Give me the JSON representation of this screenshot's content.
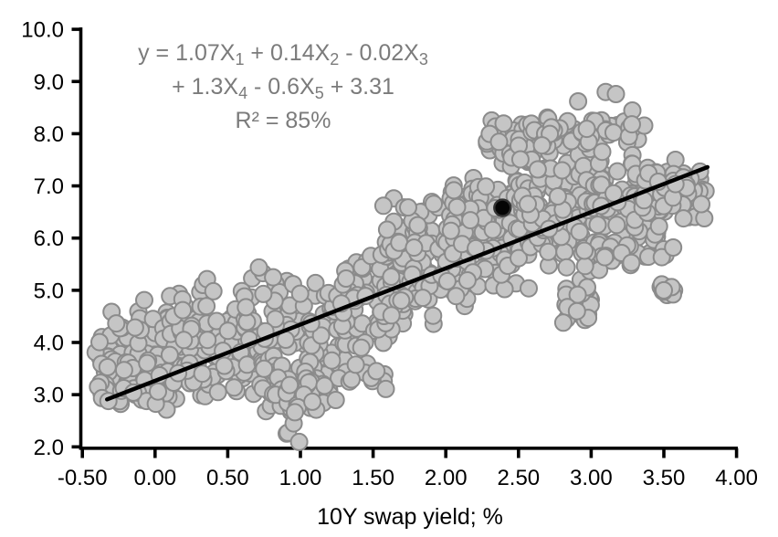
{
  "chart_data": {
    "type": "scatter",
    "title": "",
    "xlabel": "10Y swap yield; %",
    "ylabel": "",
    "xlim": [
      -0.5,
      4.0
    ],
    "ylim": [
      2.0,
      10.0
    ],
    "grid": false,
    "legend": false,
    "axis_color": "#000000",
    "x_ticks": [
      {
        "value": -0.5,
        "label": "-0.50"
      },
      {
        "value": 0.0,
        "label": "0.00"
      },
      {
        "value": 0.5,
        "label": "0.50"
      },
      {
        "value": 1.0,
        "label": "1.00"
      },
      {
        "value": 1.5,
        "label": "1.50"
      },
      {
        "value": 2.0,
        "label": "2.00"
      },
      {
        "value": 2.5,
        "label": "2.50"
      },
      {
        "value": 3.0,
        "label": "3.00"
      },
      {
        "value": 3.5,
        "label": "3.50"
      },
      {
        "value": 4.0,
        "label": "4.00"
      }
    ],
    "y_ticks": [
      {
        "value": 2.0,
        "label": "2.0"
      },
      {
        "value": 3.0,
        "label": "3.0"
      },
      {
        "value": 4.0,
        "label": "4.0"
      },
      {
        "value": 5.0,
        "label": "5.0"
      },
      {
        "value": 6.0,
        "label": "6.0"
      },
      {
        "value": 7.0,
        "label": "7.0"
      },
      {
        "value": 8.0,
        "label": "8.0"
      },
      {
        "value": 9.0,
        "label": "9.0"
      },
      {
        "value": 10.0,
        "label": "10.0"
      }
    ],
    "annotation": {
      "color": "#7b7b7b",
      "r_squared": "85%",
      "lines": [
        [
          {
            "t": "y = 1.07X"
          },
          {
            "sub": "1"
          },
          {
            "t": " + 0.14X"
          },
          {
            "sub": "2"
          },
          {
            "t": " - 0.02X"
          },
          {
            "sub": "3"
          }
        ],
        [
          {
            "t": "+ 1.3X"
          },
          {
            "sub": "4"
          },
          {
            "t": " - 0.6X"
          },
          {
            "sub": "5"
          },
          {
            "t": " + 3.31"
          }
        ],
        [
          {
            "t": "R² = 85%"
          }
        ]
      ]
    },
    "regression_line": {
      "x_start": -0.33,
      "y_start": 2.91,
      "x_end": 3.8,
      "y_end": 7.36,
      "color": "#000000",
      "width": 4.5
    },
    "highlight_point": {
      "x": 2.39,
      "y": 6.58,
      "fill": "#050505",
      "stroke": "#333333",
      "radius": 9
    },
    "outlier_points": [
      [
        2.91,
        8.62
      ],
      [
        3.1,
        8.8
      ],
      [
        3.17,
        8.76
      ]
    ],
    "point_style": {
      "radius": 9,
      "fill": "#c5c5c5",
      "stroke": "#8b8b8b",
      "stroke_width": 2
    },
    "scatter_cloud": {
      "seed": 9,
      "n_points_estimate": 1330,
      "clusters": [
        {
          "n": 110,
          "x": [
            -0.42,
            0.15
          ],
          "y": [
            2.7,
            4.85
          ]
        },
        {
          "n": 55,
          "x": [
            -0.4,
            0.12
          ],
          "y": [
            2.55,
            3.75
          ]
        },
        {
          "n": 130,
          "x": [
            0.1,
            0.7
          ],
          "y": [
            2.85,
            5.3
          ]
        },
        {
          "n": 120,
          "x": [
            0.6,
            1.32
          ],
          "y": [
            2.9,
            5.55
          ]
        },
        {
          "n": 45,
          "x": [
            0.72,
            1.28
          ],
          "y": [
            2.55,
            3.6
          ]
        },
        {
          "n": 70,
          "x": [
            1.28,
            1.72
          ],
          "y": [
            3.55,
            6.45
          ]
        },
        {
          "n": 12,
          "x": [
            1.3,
            1.6
          ],
          "y": [
            3.05,
            3.8
          ]
        },
        {
          "n": 125,
          "x": [
            1.55,
            2.15
          ],
          "y": [
            4.3,
            7.15
          ]
        },
        {
          "n": 150,
          "x": [
            2.0,
            2.58
          ],
          "y": [
            4.8,
            7.45
          ]
        },
        {
          "n": 38,
          "x": [
            2.28,
            2.6
          ],
          "y": [
            7.2,
            8.35
          ]
        },
        {
          "n": 150,
          "x": [
            2.5,
            3.1
          ],
          "y": [
            5.3,
            8.05
          ]
        },
        {
          "n": 55,
          "x": [
            2.58,
            3.38
          ],
          "y": [
            7.55,
            8.45
          ]
        },
        {
          "n": 22,
          "x": [
            2.8,
            3.0
          ],
          "y": [
            4.2,
            5.3
          ]
        },
        {
          "n": 115,
          "x": [
            3.0,
            3.52
          ],
          "y": [
            5.45,
            7.8
          ]
        },
        {
          "n": 18,
          "x": [
            2.95,
            3.3
          ],
          "y": [
            5.15,
            6.0
          ]
        },
        {
          "n": 70,
          "x": [
            3.35,
            3.8
          ],
          "y": [
            6.15,
            7.55
          ]
        },
        {
          "n": 11,
          "x": [
            3.45,
            3.68
          ],
          "y": [
            4.75,
            5.25
          ]
        },
        {
          "n": 6,
          "x": [
            3.38,
            3.6
          ],
          "y": [
            5.5,
            5.95
          ]
        }
      ],
      "tail": {
        "n": 26,
        "x_center": 0.98,
        "y_min": 2.05,
        "y_max": 3.25,
        "halfwidth_bottom": 0.05,
        "halfwidth_top": 0.22
      }
    }
  }
}
